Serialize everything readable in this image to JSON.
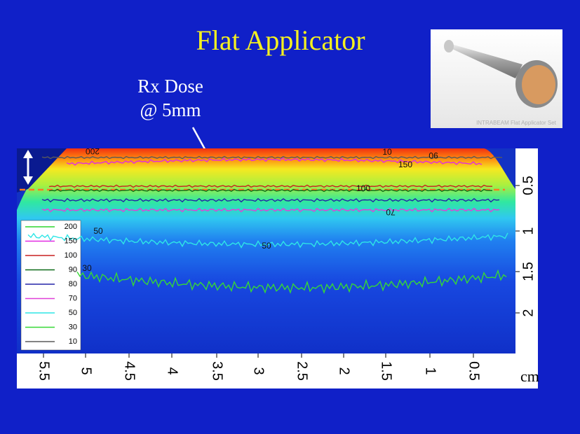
{
  "title": "Flat Applicator",
  "annotation": {
    "lines": [
      "Rx Dose",
      "@ 5mm"
    ]
  },
  "photo": {
    "caption": "INTRABEAM Flat Applicator Set"
  },
  "dose_image": {
    "legend": [
      {
        "label": "200",
        "color": "#2fd62f"
      },
      {
        "label": "150",
        "color": "#e22be2"
      },
      {
        "label": "100",
        "color": "#c82020"
      },
      {
        "label": "90",
        "color": "#0e6a18"
      },
      {
        "label": "80",
        "color": "#2424a8"
      },
      {
        "label": "70",
        "color": "#e040d8"
      },
      {
        "label": "50",
        "color": "#2ee6e6"
      },
      {
        "label": "30",
        "color": "#36d836"
      },
      {
        "label": "10",
        "color": "#5a5a5a"
      }
    ],
    "contour_labels": [
      "200",
      "10",
      "90",
      "150",
      "100",
      "70",
      "50",
      "50",
      "30"
    ],
    "depth_axis": {
      "labels": [
        "0.5",
        "1",
        "1.5",
        "2"
      ]
    },
    "lateral_axis": {
      "labels": [
        "5.5",
        "5",
        "4.5",
        "4",
        "3.5",
        "3",
        "2.5",
        "2",
        "1.5",
        "1",
        "0.5"
      ],
      "unit": "cm"
    }
  }
}
